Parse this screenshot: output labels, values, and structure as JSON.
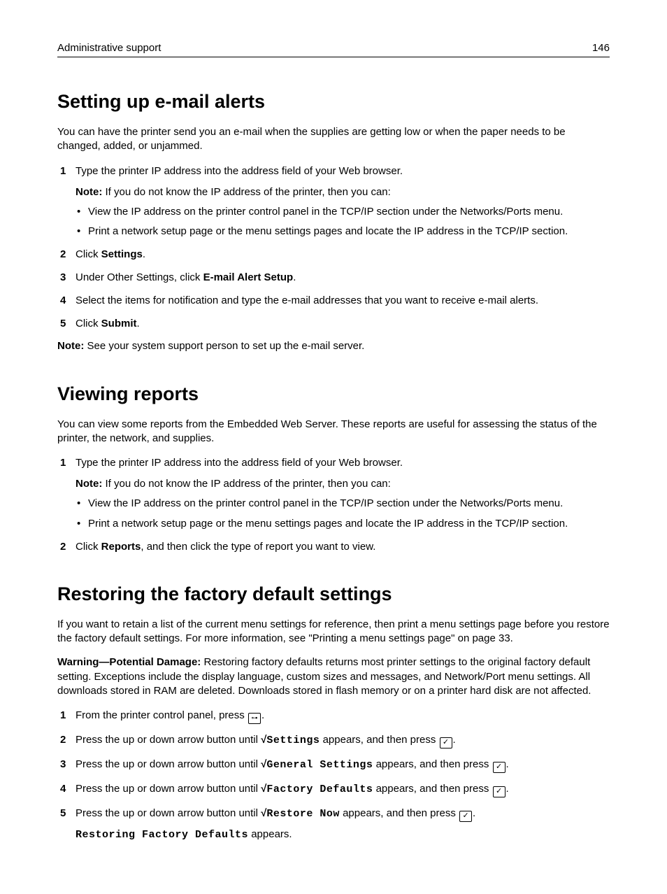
{
  "header": {
    "section": "Administrative support",
    "page": "146"
  },
  "s1": {
    "title": "Setting up e-mail alerts",
    "intro": "You can have the printer send you an e-mail when the supplies are getting low or when the paper needs to be changed, added, or unjammed.",
    "step1": "Type the printer IP address into the address field of your Web browser.",
    "note_label": "Note:",
    "note_text": " If you do not know the IP address of the printer, then you can:",
    "bullet1": "View the IP address on the printer control panel in the TCP/IP section under the Networks/Ports menu.",
    "bullet2": "Print a network setup page or the menu settings pages and locate the IP address in the TCP/IP section.",
    "step2_a": "Click ",
    "step2_b": "Settings",
    "step2_c": ".",
    "step3_a": "Under Other Settings, click ",
    "step3_b": "E-mail Alert Setup",
    "step3_c": ".",
    "step4": "Select the items for notification and type the e-mail addresses that you want to receive e-mail alerts.",
    "step5_a": "Click ",
    "step5_b": "Submit",
    "step5_c": ".",
    "foot_label": "Note:",
    "foot_text": " See your system support person to set up the e-mail server."
  },
  "s2": {
    "title": "Viewing reports",
    "intro": "You can view some reports from the Embedded Web Server. These reports are useful for assessing the status of the printer, the network, and supplies.",
    "step1": "Type the printer IP address into the address field of your Web browser.",
    "note_label": "Note:",
    "note_text": " If you do not know the IP address of the printer, then you can:",
    "bullet1": "View the IP address on the printer control panel in the TCP/IP section under the Networks/Ports menu.",
    "bullet2": "Print a network setup page or the menu settings pages and locate the IP address in the TCP/IP section.",
    "step2_a": "Click ",
    "step2_b": "Reports",
    "step2_c": ", and then click the type of report you want to view."
  },
  "s3": {
    "title": "Restoring the factory default settings",
    "intro": "If you want to retain a list of the current menu settings for reference, then print a menu settings page before you restore the factory default settings. For more information, see \"Printing a menu settings page\" on page 33.",
    "warn_label": "Warning—Potential Damage:",
    "warn_text": " Restoring factory defaults returns most printer settings to the original factory default setting. Exceptions include the display language, custom sizes and messages, and Network/Port menu settings. All downloads stored in RAM are deleted. Downloads stored in flash memory or on a printer hard disk are not affected.",
    "step1_a": "From the printer control panel, press ",
    "step1_b": ".",
    "arrow_pre": "Press the up or down arrow button until ",
    "sqrt": "√",
    "appears_press": " appears, and then press ",
    "period": ".",
    "m_settings": "Settings",
    "m_general": "General Settings",
    "m_factory": "Factory Defaults",
    "m_restore": "Restore Now",
    "msg_a": "Restoring Factory Defaults",
    "msg_b": " appears."
  },
  "nums": {
    "n1": "1",
    "n2": "2",
    "n3": "3",
    "n4": "4",
    "n5": "5"
  },
  "icons": {
    "check": "✓",
    "key": "⊶"
  }
}
